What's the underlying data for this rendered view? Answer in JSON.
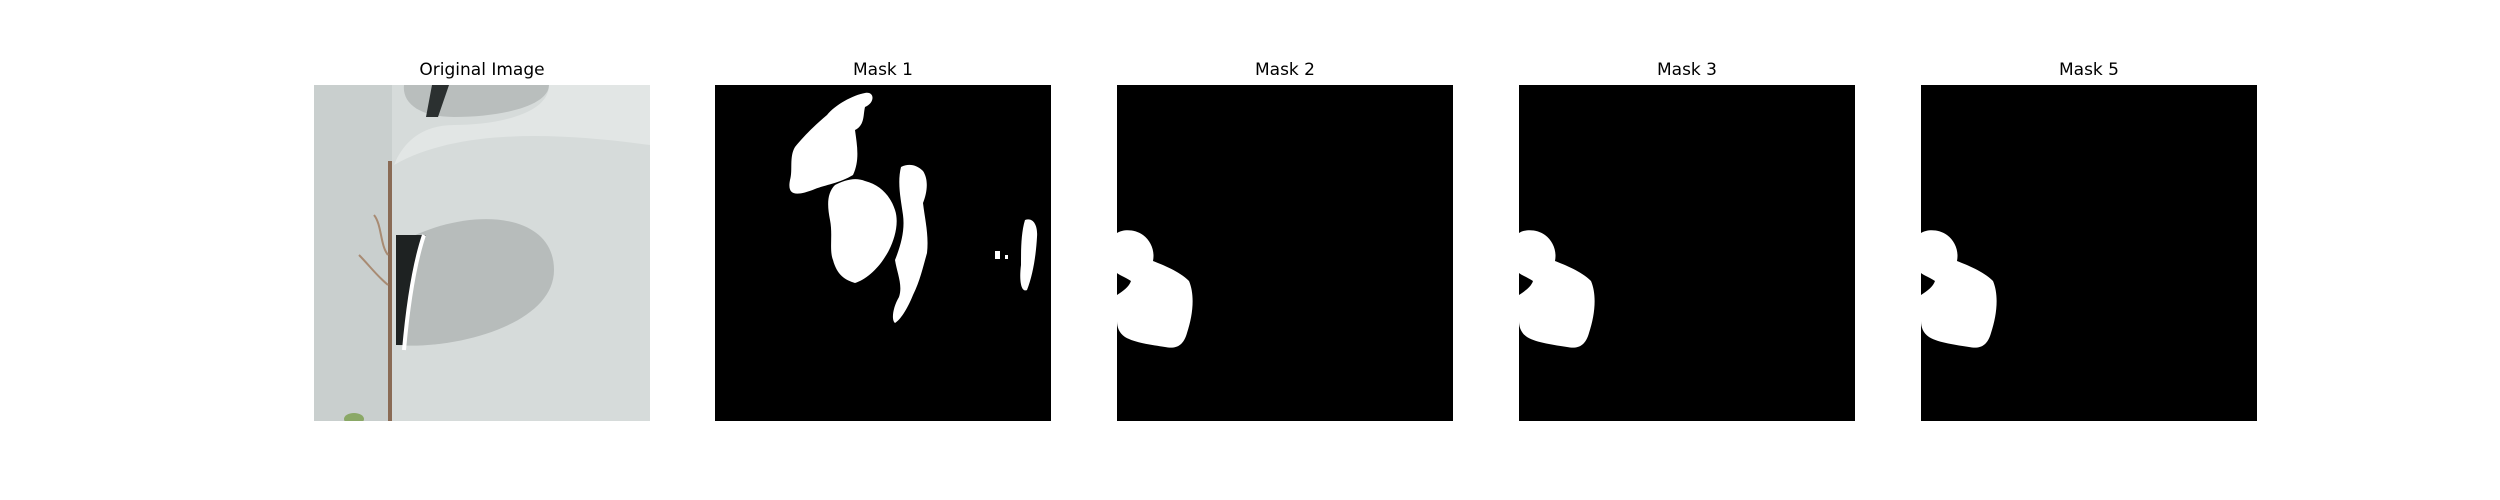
{
  "figure": {
    "panels": [
      {
        "title": "Original Image",
        "kind": "photo"
      },
      {
        "title": "Mask 1",
        "kind": "mask"
      },
      {
        "title": "Mask 2",
        "kind": "mask"
      },
      {
        "title": "Mask 3",
        "kind": "mask"
      },
      {
        "title": "Mask 5",
        "kind": "mask"
      }
    ]
  },
  "colors": {
    "mask_background": "#000000",
    "mask_foreground": "#ffffff",
    "photo_wall": "#d7dcdb",
    "photo_shadow": "#aeb3b2"
  }
}
